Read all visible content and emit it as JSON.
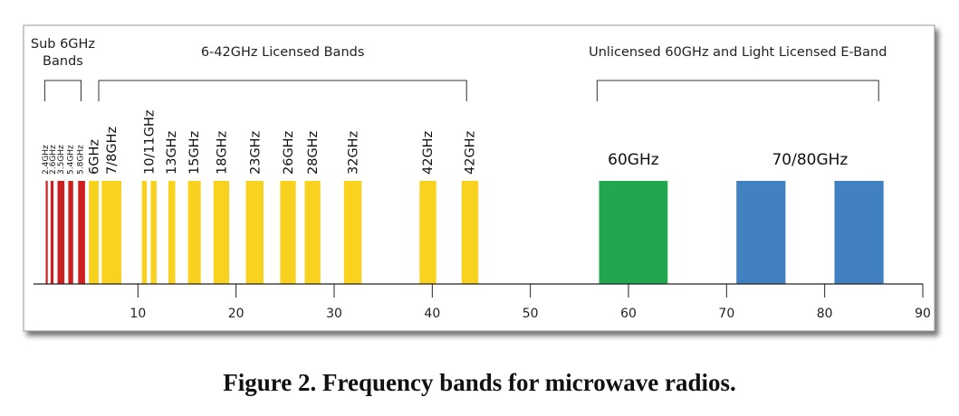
{
  "figure_caption": "Figure 2.  Frequency bands for microwave radios.",
  "chart_data": {
    "type": "bar",
    "xlim": [
      0,
      90
    ],
    "x_ticks": [
      10,
      20,
      30,
      40,
      50,
      60,
      70,
      80,
      90
    ],
    "grid": false,
    "group_labels": [
      {
        "text": "Sub 6GHz Bands",
        "lines": [
          "Sub 6GHz",
          "Bands"
        ],
        "range": [
          0.5,
          4.2
        ]
      },
      {
        "text": "6-42GHz Licensed Bands",
        "lines": [
          "6-42GHz Licensed Bands"
        ],
        "range": [
          6,
          43.5
        ]
      },
      {
        "text": "Unlicensed 60GHz and Light Licensed E-Band",
        "lines": [
          "Unlicensed 60GHz and Light Licensed E-Band"
        ],
        "range": [
          56.8,
          85.5
        ]
      }
    ],
    "series": [
      {
        "color": "#cc1f1f",
        "bands": [
          [
            0.6,
            0.8
          ],
          [
            1.1,
            1.4
          ],
          [
            1.8,
            2.5
          ],
          [
            2.9,
            3.4
          ],
          [
            3.9,
            4.6
          ]
        ]
      },
      {
        "color": "#f9d21f",
        "bands": [
          [
            5.0,
            6.0
          ],
          [
            6.3,
            8.3
          ],
          [
            10.4,
            10.9
          ],
          [
            11.3,
            11.9
          ],
          [
            13.1,
            13.8
          ],
          [
            15.1,
            16.4
          ],
          [
            17.7,
            19.3
          ],
          [
            21.0,
            22.8
          ],
          [
            24.5,
            26.1
          ],
          [
            27.0,
            28.6
          ],
          [
            31.0,
            32.8
          ],
          [
            38.7,
            40.4
          ],
          [
            43.0,
            44.7
          ]
        ]
      },
      {
        "color": "#21a84f",
        "bands": [
          [
            57,
            64
          ]
        ]
      },
      {
        "color": "#4180c1",
        "bands": [
          [
            71,
            76
          ],
          [
            81,
            86
          ]
        ]
      }
    ],
    "band_labels": [
      {
        "text": "2.4GHz",
        "x": 0.55,
        "size": "xs"
      },
      {
        "text": "2.6GHz",
        "x": 1.3,
        "size": "xs"
      },
      {
        "text": "3.5GHz",
        "x": 2.1,
        "size": "xs"
      },
      {
        "text": "5.4GHz",
        "x": 3.1,
        "size": "xs"
      },
      {
        "text": "5.8GHz",
        "x": 4.1,
        "size": "xs"
      },
      {
        "text": "6GHz",
        "x": 5.5,
        "size": "m"
      },
      {
        "text": "7/8GHz",
        "x": 7.3,
        "size": "m"
      },
      {
        "text": "10/11GHz",
        "x": 11.1,
        "size": "m"
      },
      {
        "text": "13GHz",
        "x": 13.4,
        "size": "m"
      },
      {
        "text": "15GHz",
        "x": 15.7,
        "size": "m"
      },
      {
        "text": "18GHz",
        "x": 18.5,
        "size": "m"
      },
      {
        "text": "23GHz",
        "x": 21.9,
        "size": "m"
      },
      {
        "text": "26GHz",
        "x": 25.3,
        "size": "m"
      },
      {
        "text": "28GHz",
        "x": 27.8,
        "size": "m"
      },
      {
        "text": "32GHz",
        "x": 31.9,
        "size": "m"
      },
      {
        "text": "42GHz",
        "x": 39.5,
        "size": "m"
      },
      {
        "text": "42GHz",
        "x": 43.8,
        "size": "m"
      }
    ],
    "top_labels": [
      {
        "text": "60GHz",
        "x": 60.5
      },
      {
        "text": "70/80GHz",
        "x": 78.5
      }
    ]
  }
}
